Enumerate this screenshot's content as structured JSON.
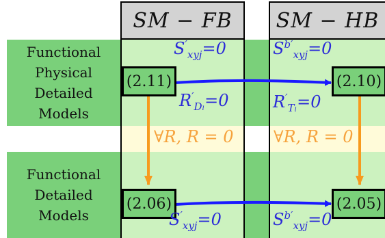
{
  "columns": [
    {
      "header": "SM − FB"
    },
    {
      "header": "SM − HB"
    }
  ],
  "rows": [
    {
      "label_lines": [
        "Functional",
        "Physical",
        "Detailed",
        "Models"
      ]
    },
    {
      "label_lines": [
        "Functional",
        "Detailed",
        "Models"
      ]
    }
  ],
  "nodes": {
    "top_left": "(2.11)",
    "top_right": "(2.10)",
    "bottom_left": "(2.06)",
    "bottom_right": "(2.05)"
  },
  "equations": {
    "top_left_upper": {
      "base": "S",
      "sup": "′",
      "sub": "xyj",
      "rhs": "=0"
    },
    "top_left_lower": {
      "base": "R",
      "sup": "′",
      "sub": "Dₗ",
      "rhs": "=0"
    },
    "top_right_upper": {
      "base": "S",
      "sup": "b′",
      "sub": "xyj",
      "rhs": "=0"
    },
    "top_right_lower": {
      "base": "R",
      "sup": "′",
      "sub": "Tₗ",
      "rhs": "=0"
    },
    "middle_left": "∀R, R = 0",
    "middle_right": "∀R, R = 0",
    "bottom_left": {
      "base": "S",
      "sup": "′",
      "sub": "xyj",
      "rhs": "=0"
    },
    "bottom_right": {
      "base": "S",
      "sup": "b′",
      "sub": "xyj",
      "rhs": "=0"
    }
  },
  "colors": {
    "column_fill": "#ccf2bf",
    "label_fill": "#7ad07a",
    "middle_band": "#fffbd9",
    "header_fill": "#d3d3d3",
    "arrow_blue": "#1a1aff",
    "arrow_orange": "#f79a1e",
    "equation_blue": "#2a2ad8"
  }
}
